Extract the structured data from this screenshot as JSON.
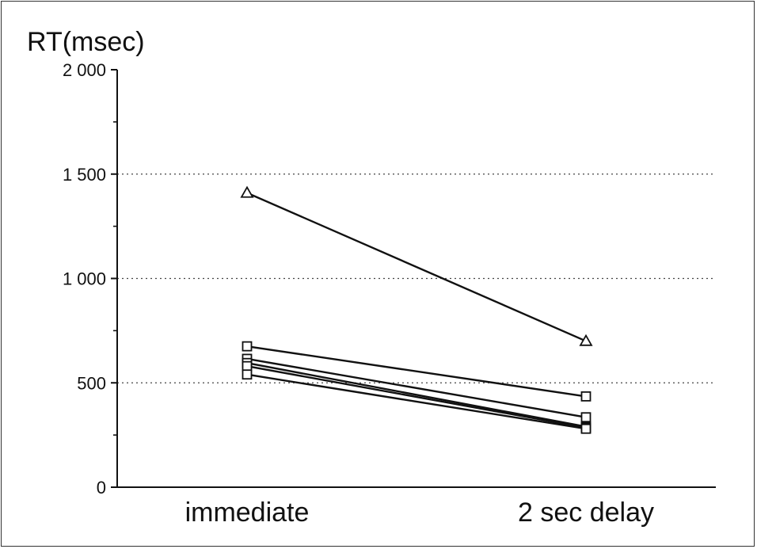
{
  "chart_data": {
    "type": "line",
    "title": "",
    "ylabel": "RT(msec)",
    "xlabel": "",
    "categories": [
      "immediate",
      "2 sec delay"
    ],
    "ylim": [
      0,
      2000
    ],
    "yticks": [
      {
        "value": 0,
        "label": "0"
      },
      {
        "value": 500,
        "label": "500"
      },
      {
        "value": 1000,
        "label": "1 000"
      },
      {
        "value": 1500,
        "label": "1 500"
      },
      {
        "value": 2000,
        "label": "2 000"
      }
    ],
    "minor_yticks": [
      250,
      750,
      1250,
      1750
    ],
    "grid_dotted_at": [
      500,
      1000,
      1500
    ],
    "series": [
      {
        "marker": "triangle",
        "values": [
          1410,
          700
        ]
      },
      {
        "marker": "square",
        "values": [
          675,
          435
        ]
      },
      {
        "marker": "square",
        "values": [
          615,
          335
        ]
      },
      {
        "marker": "square",
        "values": [
          595,
          290
        ]
      },
      {
        "marker": "square",
        "values": [
          580,
          285
        ]
      },
      {
        "marker": "square",
        "values": [
          540,
          280
        ]
      }
    ]
  }
}
